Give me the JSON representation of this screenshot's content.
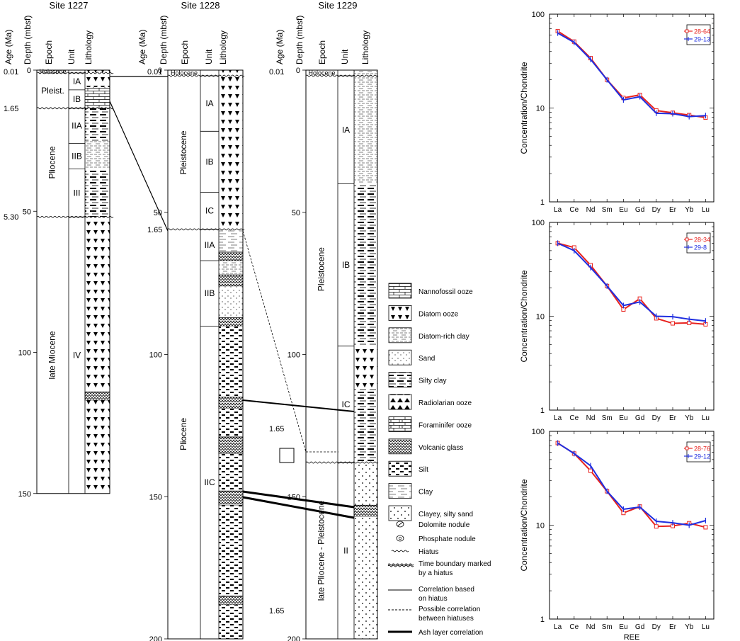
{
  "sites": [
    {
      "title": "Site 1227",
      "headers": [
        "Age (Ma)",
        "Depth (mbsf)",
        "Epoch",
        "Unit",
        "Lithology"
      ],
      "depth_ticks": [
        "0",
        "50",
        "100",
        "150"
      ],
      "age_labels": [
        {
          "text": "0.01",
          "depth": 0.5
        },
        {
          "text": "1.65",
          "depth": 13.5
        },
        {
          "text": "5.30",
          "depth": 52
        }
      ],
      "epochs": [
        {
          "name": "Holocene",
          "top": 0,
          "bottom": 1
        },
        {
          "name": "Pleist.",
          "top": 1,
          "bottom": 13.5
        },
        {
          "name": "Pliocene",
          "top": 13.5,
          "bottom": 52
        },
        {
          "name": "late Miocene",
          "top": 52,
          "bottom": 150
        }
      ],
      "units": [
        {
          "name": "IA",
          "top": 1,
          "bottom": 7
        },
        {
          "name": "IB",
          "top": 7,
          "bottom": 13.5
        },
        {
          "name": "IIA",
          "top": 13.5,
          "bottom": 26
        },
        {
          "name": "IIB",
          "top": 26,
          "bottom": 35
        },
        {
          "name": "III",
          "top": 35,
          "bottom": 52
        },
        {
          "name": "IV",
          "top": 52,
          "bottom": 150
        }
      ]
    },
    {
      "title": "Site 1228",
      "headers": [
        "Age (Ma)",
        "Depth (mbsf)",
        "Epoch",
        "Unit",
        "Lithology"
      ],
      "depth_ticks": [
        "0",
        "50",
        "100",
        "150",
        "200"
      ],
      "age_labels": [
        {
          "text": "0.01",
          "depth": 0.5
        },
        {
          "text": "1.65",
          "depth": 56
        }
      ],
      "epochs": [
        {
          "name": "Holocene",
          "top": 0,
          "bottom": 2
        },
        {
          "name": "Pleistocene",
          "top": 2,
          "bottom": 56
        },
        {
          "name": "Pliocene",
          "top": 56,
          "bottom": 200
        }
      ],
      "units": [
        {
          "name": "IA",
          "top": 2,
          "bottom": 21.5
        },
        {
          "name": "IB",
          "top": 21.5,
          "bottom": 43
        },
        {
          "name": "IC",
          "top": 43,
          "bottom": 56
        },
        {
          "name": "IIA",
          "top": 56,
          "bottom": 67
        },
        {
          "name": "IIB",
          "top": 67,
          "bottom": 90
        },
        {
          "name": "IIC",
          "top": 90,
          "bottom": 200
        }
      ]
    },
    {
      "title": "Site 1229",
      "headers": [
        "Age (Ma)",
        "Depth (mbsf)",
        "Epoch",
        "Unit",
        "Lithology"
      ],
      "depth_ticks": [
        "0",
        "50",
        "100",
        "150",
        "200"
      ],
      "age_labels": [
        {
          "text": "0.01",
          "depth": 0.5
        },
        {
          "text": "1.65",
          "depth": 126
        },
        {
          "text": "1.65",
          "depth": 190
        }
      ],
      "epochs": [
        {
          "name": "Holocene",
          "top": 0,
          "bottom": 2
        },
        {
          "name": "Pleistocene",
          "top": 2,
          "bottom": 138
        },
        {
          "name": "late Pliocene - Pleistocene",
          "top": 138,
          "bottom": 200
        }
      ],
      "units": [
        {
          "name": "IA",
          "top": 2,
          "bottom": 40
        },
        {
          "name": "IB",
          "top": 40,
          "bottom": 97
        },
        {
          "name": "IC",
          "top": 97,
          "bottom": 138
        },
        {
          "name": "II",
          "top": 138,
          "bottom": 200
        }
      ]
    }
  ],
  "legend": [
    {
      "label": "Nannofossil ooze",
      "pattern": "nanno"
    },
    {
      "label": "Diatom ooze",
      "pattern": "diatom"
    },
    {
      "label": "Diatom-rich clay",
      "pattern": "diatomclay"
    },
    {
      "label": "Sand",
      "pattern": "sand"
    },
    {
      "label": "Silty clay",
      "pattern": "siltyclay"
    },
    {
      "label": "Radiolarian ooze",
      "pattern": "radio"
    },
    {
      "label": "Foraminifer ooze",
      "pattern": "foram"
    },
    {
      "label": "Volcanic glass",
      "pattern": "glass"
    },
    {
      "label": "Silt",
      "pattern": "silt"
    },
    {
      "label": "Clay",
      "pattern": "clay"
    },
    {
      "label": "Clayey, silty sand",
      "pattern": "csand"
    }
  ],
  "symbol_legend": [
    {
      "label": "Dolomite nodule",
      "symbol": "dolomite-nodule-icon"
    },
    {
      "label": "Phosphate nodule",
      "symbol": "phosphate-nodule-icon"
    },
    {
      "label": "Hiatus",
      "symbol": "hiatus-icon"
    },
    {
      "label": "Time boundary marked by a hiatus",
      "symbol": "time-boundary-hiatus-icon"
    },
    {
      "label": "Correlation based on hiatus",
      "symbol": "correlation-line-icon"
    },
    {
      "label": "Possible correlation between hiatuses",
      "symbol": "possible-correlation-icon"
    },
    {
      "label": "Ash layer correlation",
      "symbol": "ash-correlation-icon"
    }
  ],
  "chart_data": [
    {
      "type": "line",
      "xlabel": "",
      "ylabel": "Concentration/Chondrite",
      "log_y": true,
      "ylim": [
        1,
        100
      ],
      "y_ticks": [
        "1",
        "10",
        "100"
      ],
      "categories": [
        "La",
        "Ce",
        "Nd",
        "Sm",
        "Eu",
        "Gd",
        "Dy",
        "Er",
        "Yb",
        "Lu"
      ],
      "series": [
        {
          "name": "28-64",
          "color": "#e8231f",
          "values": [
            66,
            51,
            34,
            20,
            12.8,
            13.8,
            9.4,
            8.9,
            8.4,
            7.9
          ]
        },
        {
          "name": "29-13",
          "color": "#1f2ee0",
          "values": [
            63,
            50,
            33,
            20,
            12.2,
            13.2,
            8.8,
            8.7,
            8.1,
            8.3
          ]
        }
      ]
    },
    {
      "type": "line",
      "xlabel": "",
      "ylabel": "Concentration/Chondrite",
      "log_y": true,
      "ylim": [
        1,
        100
      ],
      "y_ticks": [
        "1",
        "10",
        "100"
      ],
      "categories": [
        "La",
        "Ce",
        "Nd",
        "Sm",
        "Eu",
        "Gd",
        "Dy",
        "Er",
        "Yb",
        "Lu"
      ],
      "series": [
        {
          "name": "28-34",
          "color": "#e8231f",
          "values": [
            60,
            54,
            35,
            21,
            11.8,
            15.4,
            9.5,
            8.4,
            8.5,
            8.2
          ]
        },
        {
          "name": "29-8",
          "color": "#1f2ee0",
          "values": [
            60,
            50,
            33,
            21,
            13,
            14.2,
            10,
            9.9,
            9.3,
            8.9
          ]
        }
      ]
    },
    {
      "type": "line",
      "xlabel": "REE",
      "ylabel": "Concentration/Chondrite",
      "log_y": true,
      "ylim": [
        1,
        100
      ],
      "y_ticks": [
        "1",
        "10",
        "100"
      ],
      "categories": [
        "La",
        "Ce",
        "Nd",
        "Sm",
        "Eu",
        "Gd",
        "Dy",
        "Er",
        "Yb",
        "Lu"
      ],
      "series": [
        {
          "name": "28-76",
          "color": "#e8231f",
          "values": [
            75,
            58,
            38,
            23,
            13.5,
            15.8,
            9.7,
            9.8,
            10.5,
            9.5
          ]
        },
        {
          "name": "29-12",
          "color": "#1f2ee0",
          "values": [
            75,
            58,
            43,
            23,
            14.8,
            15.6,
            11,
            10.6,
            10,
            11.2
          ]
        }
      ]
    }
  ]
}
